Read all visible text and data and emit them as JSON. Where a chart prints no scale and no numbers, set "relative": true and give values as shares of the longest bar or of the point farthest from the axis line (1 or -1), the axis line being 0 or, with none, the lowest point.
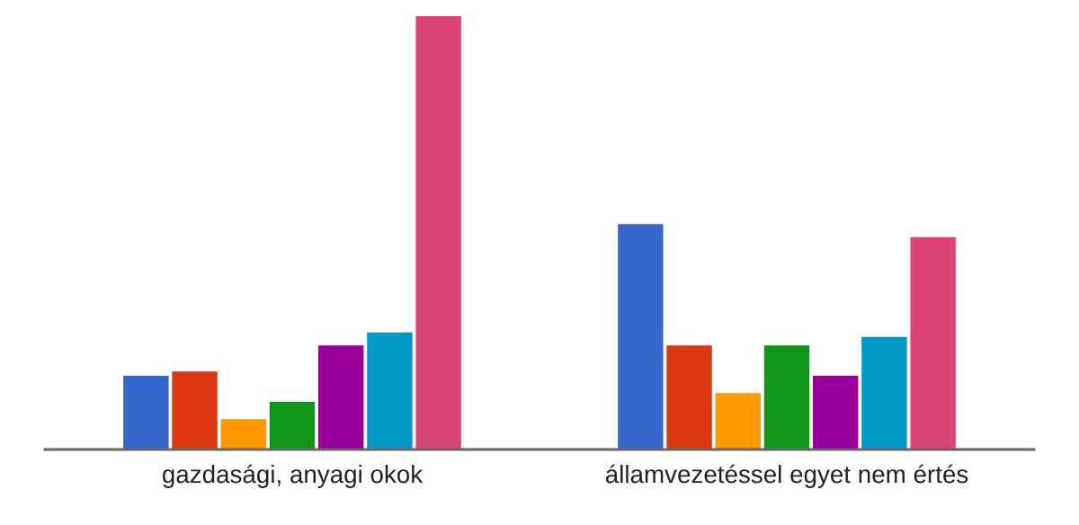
{
  "chart_data": {
    "type": "bar",
    "relative": true,
    "categories": [
      "gazdasági, anyagi okok",
      "államvezetéssel egyet nem értés"
    ],
    "series": [
      {
        "color": "#3366cc",
        "values": [
          0.17,
          0.52
        ]
      },
      {
        "color": "#dc3912",
        "values": [
          0.18,
          0.24
        ]
      },
      {
        "color": "#ff9900",
        "values": [
          0.07,
          0.13
        ]
      },
      {
        "color": "#109618",
        "values": [
          0.11,
          0.24
        ]
      },
      {
        "color": "#990099",
        "values": [
          0.24,
          0.17
        ]
      },
      {
        "color": "#0099c6",
        "values": [
          0.27,
          0.26
        ]
      },
      {
        "color": "#dd4477",
        "values": [
          1,
          0.49
        ]
      }
    ]
  }
}
